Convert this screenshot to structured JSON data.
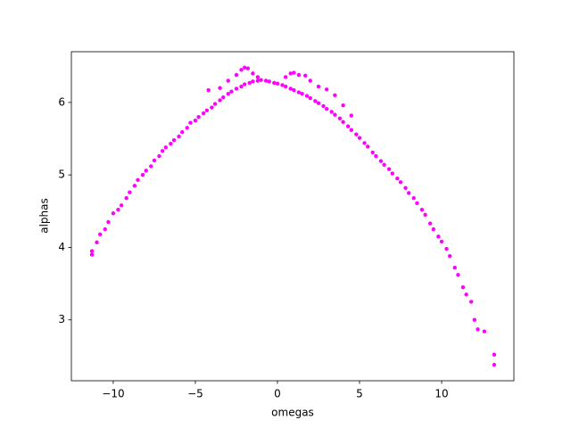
{
  "chart_data": {
    "type": "scatter",
    "x_label": "omegas",
    "y_label": "alphas",
    "color": "#ff00ff",
    "xlim": [
      -12.55,
      14.4
    ],
    "ylim": [
      2.16,
      6.7
    ],
    "xticks": [
      {
        "value": -10,
        "label": "−10"
      },
      {
        "value": -5,
        "label": "−5"
      },
      0,
      5,
      10
    ],
    "yticks": [
      3,
      4,
      5,
      6
    ],
    "x": [
      -11.3,
      -11.3,
      -11.0,
      -10.8,
      -10.5,
      -10.3,
      -10.0,
      -9.7,
      -9.5,
      -9.2,
      -9.0,
      -8.7,
      -8.5,
      -8.2,
      -8.0,
      -7.7,
      -7.5,
      -7.2,
      -7.0,
      -6.8,
      -6.5,
      -6.3,
      -6.0,
      -5.8,
      -5.5,
      -5.3,
      -5.0,
      -4.8,
      -4.5,
      -4.3,
      -4.0,
      -3.8,
      -3.5,
      -3.3,
      -3.0,
      -2.8,
      -2.5,
      -2.2,
      -2.0,
      -1.7,
      -1.5,
      -1.2,
      -1.0,
      -0.7,
      -0.5,
      -0.2,
      0.0,
      0.3,
      0.5,
      0.8,
      1.0,
      1.3,
      1.5,
      1.8,
      2.0,
      2.3,
      2.5,
      2.8,
      3.0,
      3.3,
      3.5,
      3.8,
      4.0,
      4.3,
      4.5,
      4.8,
      5.0,
      5.3,
      5.5,
      5.8,
      6.0,
      6.3,
      6.5,
      6.8,
      7.0,
      7.3,
      7.5,
      7.8,
      8.0,
      8.3,
      8.5,
      8.8,
      9.0,
      9.3,
      9.5,
      9.8,
      10.0,
      10.3,
      10.5,
      10.8,
      11.0,
      11.3,
      11.5,
      11.8,
      12.0,
      12.2,
      12.6,
      13.2,
      13.2,
      -4.2,
      -3.5,
      -3.0,
      -2.5,
      -2.2,
      -2.0,
      -1.8,
      -1.5,
      -1.2,
      0.5,
      0.8,
      1.0,
      1.3,
      1.7,
      2.0,
      2.5,
      3.0,
      3.5,
      4.0,
      4.5
    ],
    "values": [
      3.9,
      3.95,
      4.07,
      4.18,
      4.25,
      4.35,
      4.47,
      4.52,
      4.58,
      4.68,
      4.76,
      4.85,
      4.93,
      5.0,
      5.06,
      5.12,
      5.2,
      5.26,
      5.33,
      5.38,
      5.43,
      5.48,
      5.53,
      5.59,
      5.65,
      5.72,
      5.75,
      5.8,
      5.85,
      5.89,
      5.93,
      5.98,
      6.03,
      6.07,
      6.12,
      6.15,
      6.19,
      6.22,
      6.25,
      6.27,
      6.29,
      6.3,
      6.31,
      6.3,
      6.29,
      6.27,
      6.26,
      6.24,
      6.22,
      6.19,
      6.17,
      6.14,
      6.12,
      6.09,
      6.06,
      6.02,
      5.99,
      5.95,
      5.91,
      5.87,
      5.83,
      5.78,
      5.73,
      5.67,
      5.62,
      5.56,
      5.51,
      5.44,
      5.39,
      5.31,
      5.26,
      5.19,
      5.14,
      5.08,
      5.02,
      4.95,
      4.9,
      4.82,
      4.75,
      4.68,
      4.61,
      4.52,
      4.45,
      4.33,
      4.25,
      4.15,
      4.08,
      3.98,
      3.88,
      3.72,
      3.62,
      3.45,
      3.35,
      3.25,
      3.0,
      2.87,
      2.84,
      2.52,
      2.38,
      6.17,
      6.2,
      6.3,
      6.38,
      6.45,
      6.48,
      6.47,
      6.4,
      6.35,
      6.35,
      6.4,
      6.41,
      6.38,
      6.37,
      6.3,
      6.22,
      6.18,
      6.1,
      5.96,
      5.82
    ]
  }
}
